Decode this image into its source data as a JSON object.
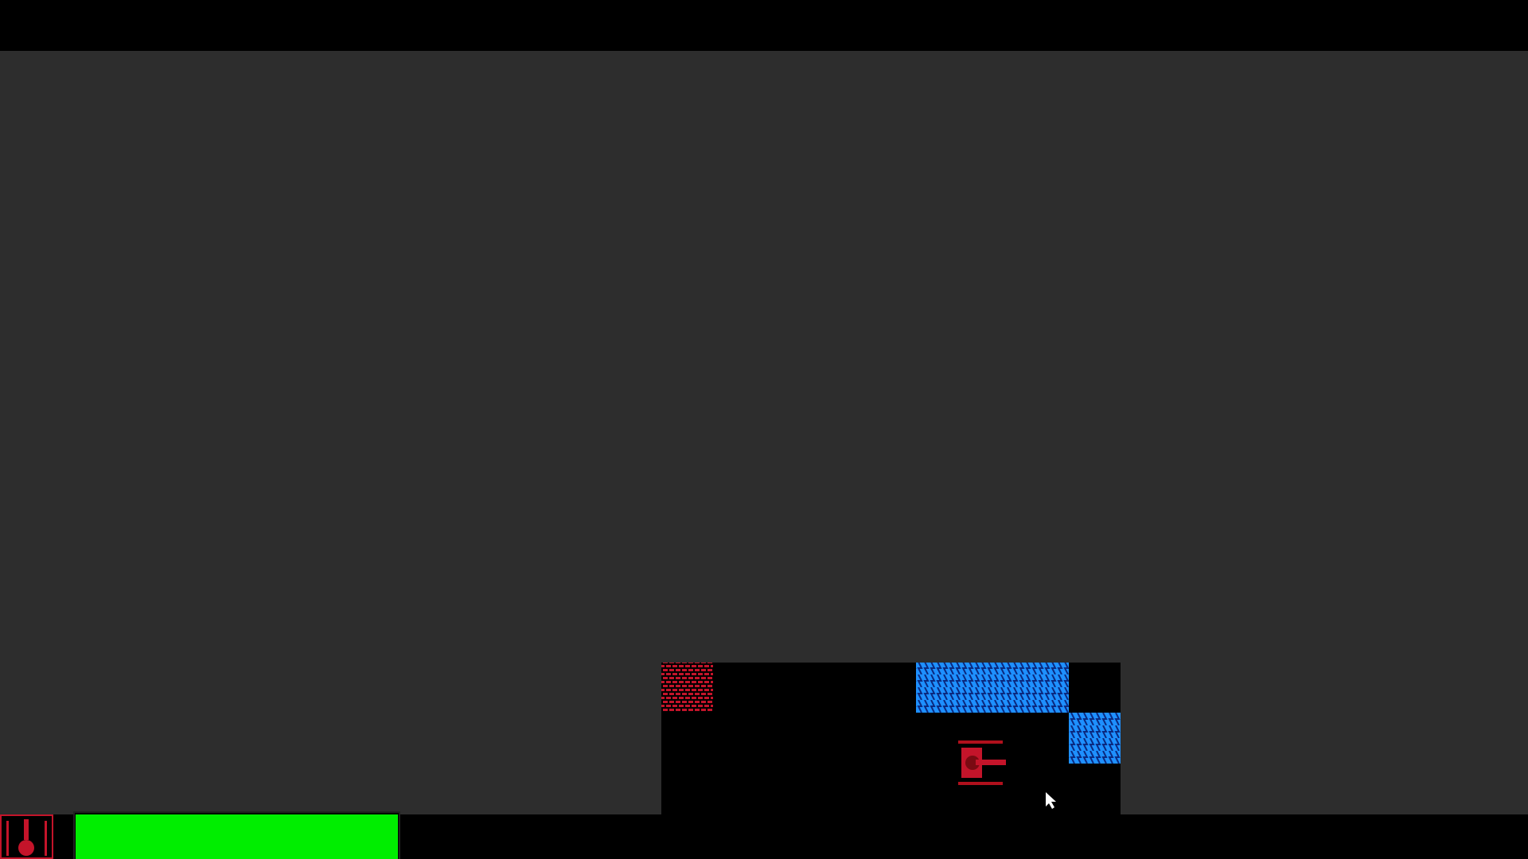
{
  "hud": {
    "health": 100
  }
}
